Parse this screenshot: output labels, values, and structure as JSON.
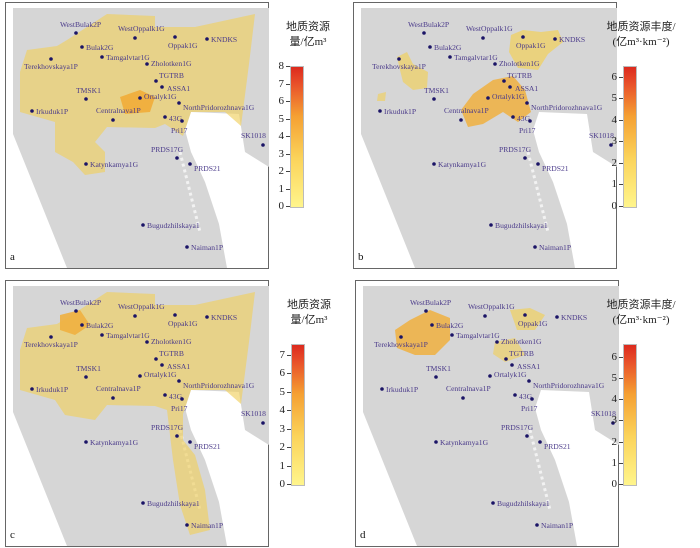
{
  "colors": {
    "well_dot": "#1b1466",
    "well_label": "#4a3a8a",
    "map_gray": "#d6d6d6",
    "resource_low": "#fff58c",
    "resource_high": "#dc2a1e"
  },
  "wells": [
    "WestBulak2P",
    "Bulak2G",
    "Tamgalvtar1G",
    "Terekhovskaya1P",
    "WestOppalk1G",
    "Oppak1G",
    "KNDKS",
    "Zholotken1G",
    "TGTRB",
    "ASSA1",
    "Ortalyk1G",
    "NorthPridorozhnava1G",
    "TMSK1",
    "Irkuduk1P",
    "Centralnava1P",
    "43G",
    "Pri17",
    "SK1018",
    "PRDS17G",
    "PRDS21",
    "Katynkamya1G",
    "Bugudzhilskaya1",
    "Naiman1P"
  ],
  "panels": [
    {
      "letter": "a",
      "legend_line1": "地质资源",
      "legend_line2": "量/亿m³",
      "ticks": [
        "0",
        "1",
        "2",
        "3",
        "4",
        "5",
        "6",
        "7",
        "8"
      ],
      "max": 8
    },
    {
      "letter": "b",
      "legend_line1": "地质资源丰度/",
      "legend_line2": "(亿m³·km⁻²)",
      "ticks": [
        "0",
        "1",
        "2",
        "3",
        "4",
        "5",
        "6"
      ],
      "max": 6.5
    },
    {
      "letter": "c",
      "legend_line1": "地质资源",
      "legend_line2": "量/亿m³",
      "ticks": [
        "0",
        "1",
        "2",
        "3",
        "4",
        "5",
        "6",
        "7"
      ],
      "max": 7.6
    },
    {
      "letter": "d",
      "legend_line1": "地质资源丰度/",
      "legend_line2": "(亿m³·km⁻²)",
      "ticks": [
        "0",
        "1",
        "2",
        "3",
        "4",
        "5",
        "6"
      ],
      "max": 6.6
    }
  ]
}
